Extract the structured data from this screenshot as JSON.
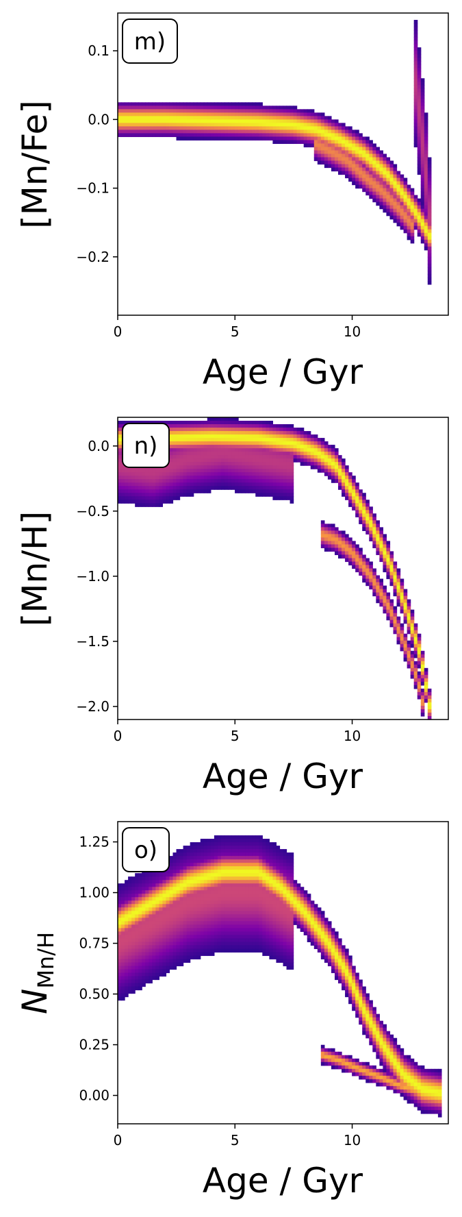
{
  "chart_data": [
    {
      "type": "heatmap",
      "panel_label": "m)",
      "xlabel": "Age / Gyr",
      "ylabel": "[Mn/Fe]",
      "xlim": [
        0,
        14.1
      ],
      "ylim": [
        -0.285,
        0.155
      ],
      "x_ticks": [
        0,
        5,
        10
      ],
      "y_ticks": [
        0.1,
        0.0,
        -0.1,
        -0.2
      ],
      "x_tick_labels": [
        "0",
        "5",
        "10"
      ],
      "y_tick_labels": [
        "0.1",
        "0.0",
        "−0.1",
        "−0.2"
      ],
      "colormap": [
        "#0d0887",
        "#7e03a8",
        "#cc4778",
        "#f89540",
        "#f0f921"
      ],
      "grid": false,
      "tracks": [
        {
          "x": [
            0,
            2,
            4,
            6,
            7.5,
            8.5,
            9.5,
            10.5,
            11.5,
            12.2,
            12.8,
            13.3
          ],
          "y": [
            0.0,
            0.0,
            -0.002,
            -0.004,
            -0.008,
            -0.015,
            -0.03,
            -0.05,
            -0.08,
            -0.11,
            -0.14,
            -0.17
          ],
          "width": 0.012,
          "intensity": 1.0
        },
        {
          "x": [
            8.4,
            9.0,
            9.8,
            10.6,
            11.3,
            12.0,
            12.7
          ],
          "y": [
            -0.035,
            -0.045,
            -0.06,
            -0.085,
            -0.105,
            -0.13,
            -0.16
          ],
          "width": 0.012,
          "intensity": 0.7
        },
        {
          "x": [
            12.6,
            12.9,
            13.2,
            13.4
          ],
          "y": [
            0.08,
            0.0,
            -0.1,
            -0.2
          ],
          "width": 0.05,
          "intensity": 0.45
        }
      ]
    },
    {
      "type": "heatmap",
      "panel_label": "n)",
      "xlabel": "Age / Gyr",
      "ylabel": "[Mn/H]",
      "xlim": [
        0,
        14.1
      ],
      "ylim": [
        -2.1,
        0.22
      ],
      "x_ticks": [
        0,
        5,
        10
      ],
      "y_ticks": [
        0.0,
        -0.5,
        -1.0,
        -1.5,
        -2.0
      ],
      "x_tick_labels": [
        "0",
        "5",
        "10"
      ],
      "y_tick_labels": [
        "0.0",
        "−0.5",
        "−1.0",
        "−1.5",
        "−2.0"
      ],
      "colormap": [
        "#0d0887",
        "#7e03a8",
        "#cc4778",
        "#f89540",
        "#f0f921"
      ],
      "grid": false,
      "tracks": [
        {
          "x": [
            0,
            2,
            4,
            6,
            7.5,
            8.5,
            9.3,
            10.0,
            10.8,
            11.6,
            12.3,
            12.9,
            13.3
          ],
          "y": [
            0.05,
            0.06,
            0.07,
            0.06,
            0.02,
            -0.05,
            -0.15,
            -0.35,
            -0.6,
            -0.9,
            -1.25,
            -1.6,
            -2.0
          ],
          "width": 0.06,
          "intensity": 1.0
        },
        {
          "x": [
            0,
            1.5,
            3,
            4.5,
            6,
            7.5
          ],
          "y": [
            -0.15,
            -0.2,
            -0.1,
            -0.05,
            -0.1,
            -0.15
          ],
          "width": 0.15,
          "intensity": 0.45
        },
        {
          "x": [
            8.7,
            9.3,
            10.0,
            10.8,
            11.6,
            12.3,
            12.8,
            13.1
          ],
          "y": [
            -0.68,
            -0.72,
            -0.82,
            -1.0,
            -1.25,
            -1.55,
            -1.8,
            -2.05
          ],
          "width": 0.05,
          "intensity": 0.75
        }
      ]
    },
    {
      "type": "heatmap",
      "panel_label": "o)",
      "xlabel": "Age / Gyr",
      "ylabel": "N_Mn/H",
      "xlim": [
        0,
        14.1
      ],
      "ylim": [
        -0.14,
        1.35
      ],
      "x_ticks": [
        0,
        5,
        10
      ],
      "y_ticks": [
        1.25,
        1.0,
        0.75,
        0.5,
        0.25,
        0.0
      ],
      "x_tick_labels": [
        "0",
        "5",
        "10"
      ],
      "y_tick_labels": [
        "1.25",
        "1.00",
        "0.75",
        "0.50",
        "0.25",
        "0.00"
      ],
      "colormap": [
        "#0d0887",
        "#7e03a8",
        "#cc4778",
        "#f89540",
        "#f0f921"
      ],
      "grid": false,
      "tracks": [
        {
          "x": [
            0,
            1.5,
            3,
            4.5,
            6,
            7,
            8,
            9,
            9.8,
            10.5,
            11.3,
            12.2,
            13.0,
            13.8
          ],
          "y": [
            0.85,
            0.95,
            1.05,
            1.1,
            1.1,
            1.02,
            0.9,
            0.75,
            0.6,
            0.42,
            0.25,
            0.1,
            0.03,
            0.01
          ],
          "width": 0.05,
          "intensity": 1.0
        },
        {
          "x": [
            0,
            1.5,
            3,
            4.5,
            6,
            7.5
          ],
          "y": [
            0.75,
            0.85,
            0.95,
            1.0,
            1.0,
            0.9
          ],
          "width": 0.15,
          "intensity": 0.5
        },
        {
          "x": [
            8.7,
            9.5,
            10.3,
            11.2,
            12.0,
            12.8,
            13.5
          ],
          "y": [
            0.2,
            0.17,
            0.13,
            0.09,
            0.05,
            0.02,
            0.01
          ],
          "width": 0.02,
          "intensity": 0.8
        }
      ]
    }
  ]
}
